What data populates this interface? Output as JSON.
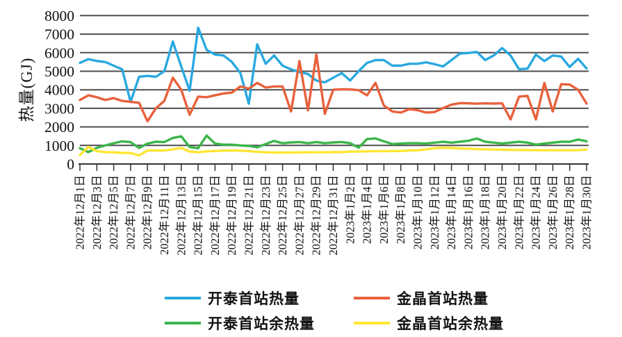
{
  "y_axis": {
    "title": "热量(GJ)",
    "tick_labels": [
      "0",
      "1000",
      "2000",
      "3000",
      "4000",
      "5000",
      "6000",
      "7000",
      "8000"
    ],
    "min": 0,
    "max": 8000,
    "step": 1000
  },
  "x_axis": {
    "tick_labels": [
      "2022年12月1日",
      "2022年12月3日",
      "2022年12月5日",
      "2022年12月7日",
      "2022年12月9日",
      "2022年12月11日",
      "2022年12月13日",
      "2022年12月15日",
      "2022年12月17日",
      "2022年12月19日",
      "2022年12月21日",
      "2022年12月23日",
      "2022年12月25日",
      "2022年12月27日",
      "2022年12月29日",
      "2022年12月31日",
      "2023年1月2日",
      "2023年1月4日",
      "2023年1月6日",
      "2023年1月8日",
      "2023年1月10日",
      "2023年1月12日",
      "2023年1月14日",
      "2023年1月16日",
      "2023年1月18日",
      "2023年1月20日",
      "2023年1月22日",
      "2023年1月24日",
      "2023年1月26日",
      "2023年1月28日",
      "2023年1月30日"
    ],
    "days_per_tick": 2
  },
  "chart_data": {
    "type": "line",
    "title": "",
    "xlabel": "",
    "ylabel": "热量(GJ)",
    "ylim": [
      0,
      8000
    ],
    "grid": true,
    "legend_position": "bottom",
    "n_points": 61,
    "x_range": [
      "2022年12月1日",
      "2023年1月30日"
    ],
    "colors": {
      "grid": "#4d4d4d",
      "axis": "#333333",
      "text": "#111111"
    },
    "series": [
      {
        "name": "开泰首站热量",
        "color": "#29a8e0",
        "values": [
          5450,
          5650,
          5550,
          5500,
          5300,
          5100,
          3350,
          4700,
          4750,
          4700,
          5000,
          6600,
          5250,
          3950,
          7350,
          6150,
          5900,
          5850,
          5500,
          4900,
          3250,
          6450,
          5400,
          5850,
          5300,
          5100,
          4950,
          4850,
          4500,
          4400,
          4650,
          4900,
          4500,
          5000,
          5450,
          5600,
          5600,
          5300,
          5300,
          5400,
          5400,
          5480,
          5380,
          5260,
          5600,
          5950,
          5980,
          6040,
          5600,
          5850,
          6250,
          5850,
          5110,
          5140,
          5900,
          5550,
          5850,
          5790,
          5230,
          5670,
          5150
        ]
      },
      {
        "name": "金晶首站热量",
        "color": "#e8613c",
        "values": [
          3450,
          3700,
          3600,
          3450,
          3550,
          3400,
          3350,
          3300,
          2300,
          3000,
          3400,
          4650,
          4000,
          2650,
          3630,
          3600,
          3700,
          3800,
          3850,
          4180,
          4060,
          4370,
          4120,
          4180,
          4180,
          2830,
          5550,
          2890,
          5900,
          2700,
          4000,
          4030,
          4020,
          3980,
          3700,
          4370,
          3150,
          2830,
          2770,
          2950,
          2900,
          2770,
          2800,
          3010,
          3200,
          3280,
          3270,
          3250,
          3270,
          3260,
          3270,
          2400,
          3630,
          3670,
          2400,
          4370,
          2830,
          4300,
          4280,
          4000,
          3260
        ]
      },
      {
        "name": "开泰首站余热量",
        "color": "#3bb54a",
        "values": [
          850,
          640,
          870,
          1000,
          1120,
          1220,
          1180,
          860,
          1100,
          1200,
          1185,
          1400,
          1490,
          915,
          850,
          1530,
          1100,
          1040,
          1040,
          1000,
          975,
          900,
          1075,
          1245,
          1120,
          1160,
          1185,
          1120,
          1185,
          1120,
          1160,
          1185,
          1120,
          880,
          1340,
          1380,
          1220,
          1075,
          1100,
          1120,
          1120,
          1100,
          1150,
          1200,
          1150,
          1200,
          1250,
          1370,
          1200,
          1150,
          1100,
          1150,
          1200,
          1150,
          1040,
          1100,
          1150,
          1200,
          1200,
          1320,
          1220
        ]
      },
      {
        "name": "金晶首站余热量",
        "color": "#ffe632",
        "values": [
          480,
          920,
          690,
          640,
          630,
          600,
          590,
          460,
          730,
          730,
          730,
          790,
          860,
          670,
          630,
          680,
          700,
          720,
          730,
          720,
          690,
          650,
          630,
          620,
          615,
          620,
          625,
          630,
          630,
          630,
          635,
          640,
          665,
          670,
          680,
          690,
          690,
          695,
          700,
          730,
          740,
          790,
          850,
          875,
          860,
          840,
          820,
          800,
          790,
          780,
          770,
          760,
          755,
          750,
          745,
          740,
          740,
          740,
          740,
          745,
          780
        ]
      }
    ]
  }
}
